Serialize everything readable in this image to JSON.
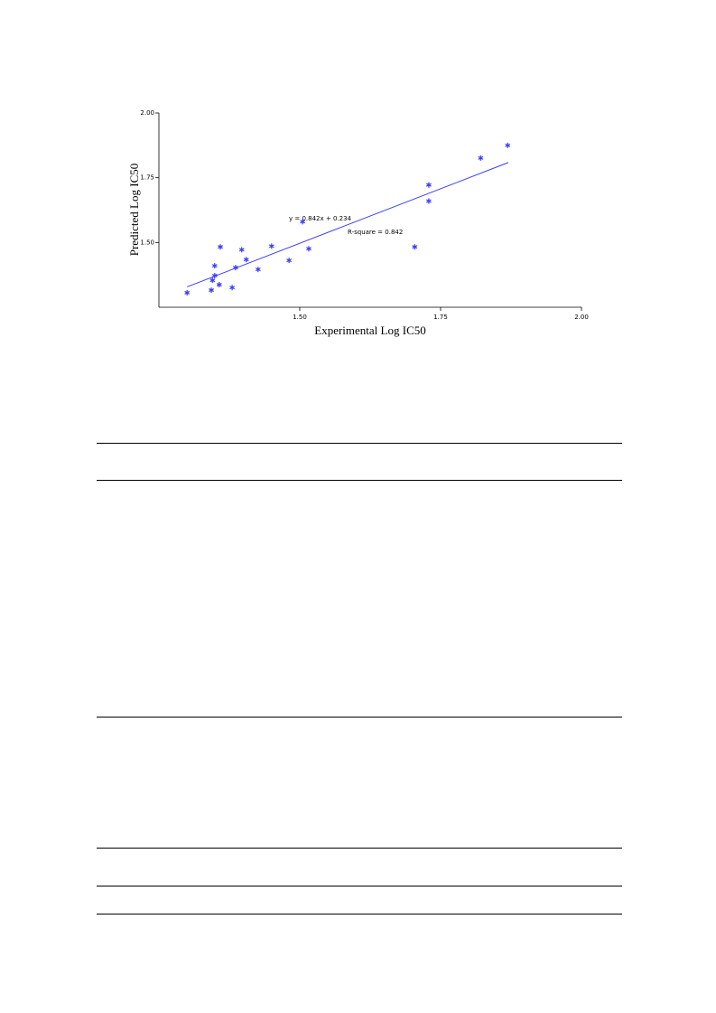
{
  "chart_data": {
    "type": "scatter",
    "x_label": "Experimental Log IC50",
    "y_label": "Predicted Log IC50",
    "color": "#3a3aff",
    "xlim": [
      1.25,
      2.0
    ],
    "ylim": [
      1.25,
      2.0
    ],
    "xticks": [
      {
        "value": 1.5,
        "label": "1.50"
      },
      {
        "value": 1.75,
        "label": "1.75"
      },
      {
        "value": 2.0,
        "label": "2.00"
      }
    ],
    "yticks": [
      {
        "value": 1.5,
        "label": "1.50"
      },
      {
        "value": 1.75,
        "label": "1.75"
      },
      {
        "value": 2.0,
        "label": "2.00"
      }
    ],
    "x": [
      1.3,
      1.343,
      1.345,
      1.349,
      1.349,
      1.357,
      1.359,
      1.38,
      1.386,
      1.397,
      1.405,
      1.426,
      1.45,
      1.481,
      1.505,
      1.516,
      1.704,
      1.729,
      1.729,
      1.821,
      1.869
    ],
    "values": [
      1.306,
      1.316,
      1.354,
      1.372,
      1.41,
      1.337,
      1.483,
      1.326,
      1.403,
      1.472,
      1.434,
      1.396,
      1.486,
      1.431,
      1.58,
      1.476,
      1.483,
      1.66,
      1.722,
      1.826,
      1.875
    ],
    "trendline": {
      "label": "y = 0.842x + 0.234",
      "slope": 0.842,
      "intercept": 0.234,
      "x": [
        1.3,
        1.87
      ]
    },
    "r_square_label": "R-square = 0.842"
  }
}
